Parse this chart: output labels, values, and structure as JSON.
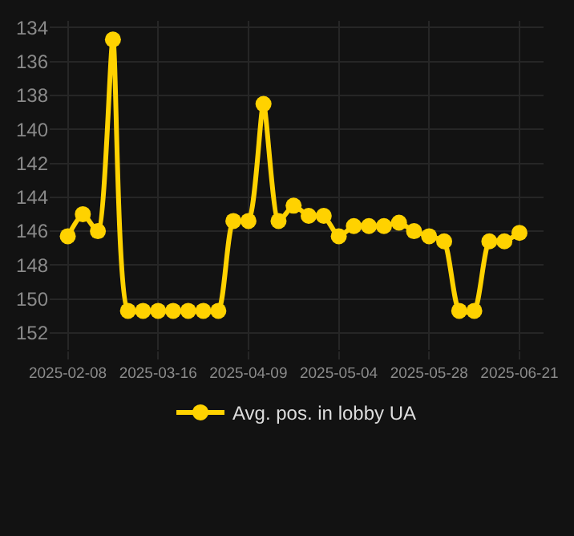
{
  "chart_data": {
    "type": "line",
    "categories": [
      "2025-02-08",
      null,
      null,
      null,
      null,
      null,
      "2025-03-16",
      null,
      null,
      null,
      null,
      null,
      "2025-04-09",
      null,
      null,
      null,
      null,
      null,
      "2025-05-04",
      null,
      null,
      null,
      null,
      null,
      "2025-05-28",
      null,
      null,
      null,
      null,
      null,
      "2025-06-21"
    ],
    "series": [
      {
        "name": "Avg. pos. in lobby UA",
        "color": "#ffd200",
        "values": [
          146.3,
          145.0,
          146.0,
          134.7,
          150.7,
          150.7,
          150.7,
          150.7,
          150.7,
          150.7,
          150.7,
          145.4,
          145.4,
          138.5,
          145.4,
          144.5,
          145.1,
          145.1,
          146.3,
          145.7,
          145.7,
          145.7,
          145.5,
          146.0,
          146.3,
          146.6,
          150.7,
          150.7,
          146.6,
          146.6,
          146.1
        ]
      }
    ],
    "ylim": [
      153.0,
      133.6
    ],
    "yticks": [
      134,
      136,
      138,
      140,
      142,
      144,
      146,
      148,
      150,
      152
    ],
    "grid": true,
    "legend": "bottom",
    "marker": "circle",
    "line_style": "solid"
  }
}
